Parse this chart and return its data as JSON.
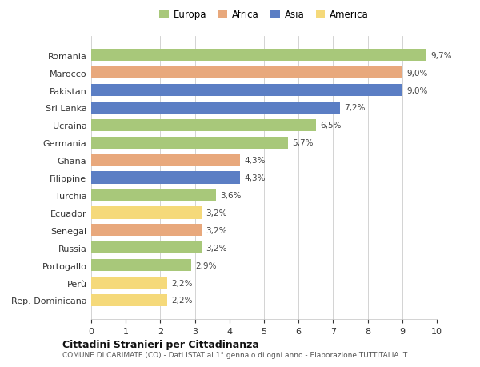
{
  "categories": [
    "Romania",
    "Marocco",
    "Pakistan",
    "Sri Lanka",
    "Ucraina",
    "Germania",
    "Ghana",
    "Filippine",
    "Turchia",
    "Ecuador",
    "Senegal",
    "Russia",
    "Portogallo",
    "Perù",
    "Rep. Dominicana"
  ],
  "values": [
    9.7,
    9.0,
    9.0,
    7.2,
    6.5,
    5.7,
    4.3,
    4.3,
    3.6,
    3.2,
    3.2,
    3.2,
    2.9,
    2.2,
    2.2
  ],
  "labels": [
    "9,7%",
    "9,0%",
    "9,0%",
    "7,2%",
    "6,5%",
    "5,7%",
    "4,3%",
    "4,3%",
    "3,6%",
    "3,2%",
    "3,2%",
    "3,2%",
    "2,9%",
    "2,2%",
    "2,2%"
  ],
  "colors": [
    "#a8c87a",
    "#e8a87c",
    "#5b7ec4",
    "#5b7ec4",
    "#a8c87a",
    "#a8c87a",
    "#e8a87c",
    "#5b7ec4",
    "#a8c87a",
    "#f5d97a",
    "#e8a87c",
    "#a8c87a",
    "#a8c87a",
    "#f5d97a",
    "#f5d97a"
  ],
  "legend": [
    {
      "label": "Europa",
      "color": "#a8c87a"
    },
    {
      "label": "Africa",
      "color": "#e8a87c"
    },
    {
      "label": "Asia",
      "color": "#5b7ec4"
    },
    {
      "label": "America",
      "color": "#f5d97a"
    }
  ],
  "xlim": [
    0,
    10
  ],
  "xticks": [
    0,
    1,
    2,
    3,
    4,
    5,
    6,
    7,
    8,
    9,
    10
  ],
  "title1": "Cittadini Stranieri per Cittadinanza",
  "title2": "COMUNE DI CARIMATE (CO) - Dati ISTAT al 1° gennaio di ogni anno - Elaborazione TUTTITALIA.IT",
  "bg_color": "#ffffff",
  "grid_color": "#cccccc"
}
